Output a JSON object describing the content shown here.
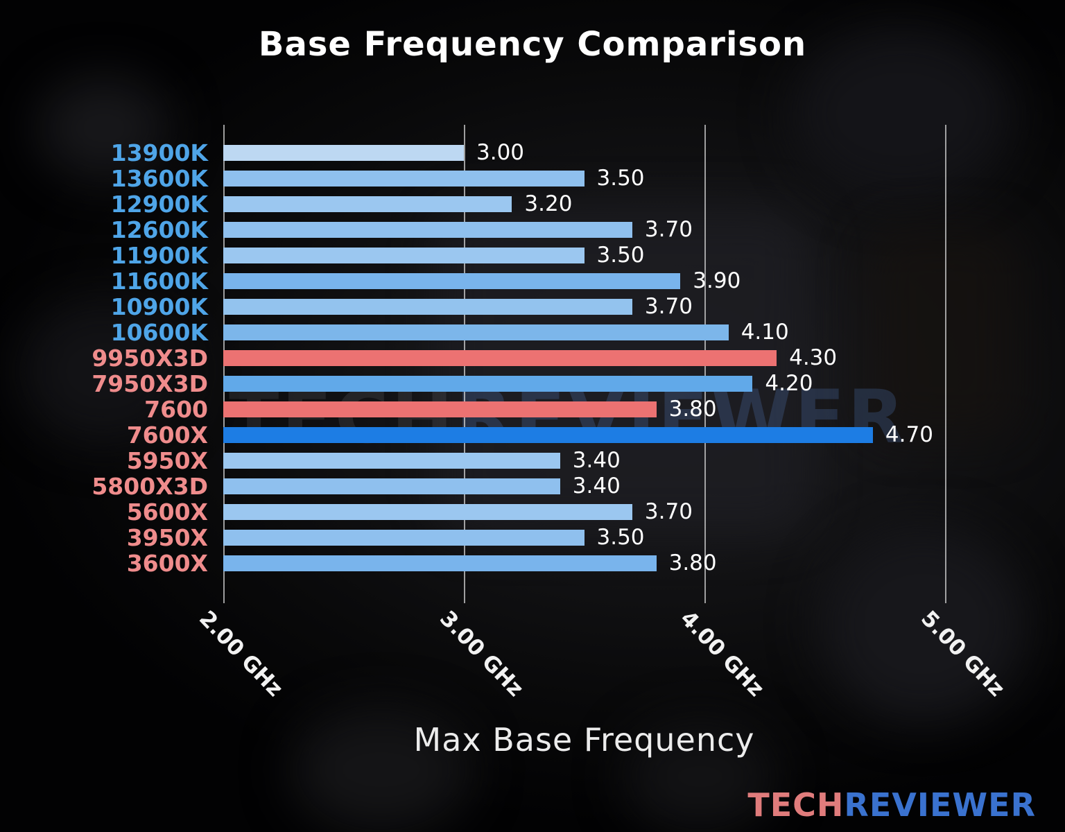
{
  "title": "Base Frequency Comparison",
  "watermark": {
    "tech": "TECH",
    "reviewer": "REVIEWER"
  },
  "logo": {
    "tech": "TECH",
    "reviewer": "REVIEWER"
  },
  "colors": {
    "title": "#ffffff",
    "value_label": "#ffffff",
    "grid": "#d8d8d8",
    "intel_label": "#4fa5e8",
    "amd_label": "#ef8c8c",
    "logo_tech": "#e07c7c",
    "logo_reviewer": "#3a72cf"
  },
  "chart_data": {
    "type": "bar",
    "orientation": "horizontal",
    "title": "Base Frequency Comparison",
    "xlabel": "Max Base Frequency",
    "xlim": [
      2.0,
      5.5
    ],
    "grid": true,
    "legend": false,
    "xticks": [
      {
        "value": 2.0,
        "label": "2.00 GHz"
      },
      {
        "value": 3.0,
        "label": "3.00 GHz"
      },
      {
        "value": 4.0,
        "label": "4.00 GHz"
      },
      {
        "value": 5.0,
        "label": "5.00 GHz"
      }
    ],
    "categories": [
      "13900K",
      "13600K",
      "12900K",
      "12600K",
      "11900K",
      "11600K",
      "10900K",
      "10600K",
      "9950X3D",
      "7950X3D",
      "7600",
      "7600X",
      "5950X",
      "5800X3D",
      "5600X",
      "3950X",
      "3600X"
    ],
    "values": [
      3.0,
      3.5,
      3.2,
      3.7,
      3.5,
      3.9,
      3.7,
      4.1,
      4.3,
      4.2,
      3.8,
      4.7,
      3.4,
      3.4,
      3.7,
      3.5,
      3.8
    ],
    "bars": [
      {
        "label": "13900K",
        "value": 3.0,
        "display": "3.00",
        "brand": "intel",
        "bar_color": "#bdd8f2",
        "label_color": "#4fa5e8"
      },
      {
        "label": "13600K",
        "value": 3.5,
        "display": "3.50",
        "brand": "intel",
        "bar_color": "#8fc0ee",
        "label_color": "#4fa5e8"
      },
      {
        "label": "12900K",
        "value": 3.2,
        "display": "3.20",
        "brand": "intel",
        "bar_color": "#9bc7f0",
        "label_color": "#4fa5e8"
      },
      {
        "label": "12600K",
        "value": 3.7,
        "display": "3.70",
        "brand": "intel",
        "bar_color": "#8fc0ee",
        "label_color": "#4fa5e8"
      },
      {
        "label": "11900K",
        "value": 3.5,
        "display": "3.50",
        "brand": "intel",
        "bar_color": "#9bc7f0",
        "label_color": "#4fa5e8"
      },
      {
        "label": "11600K",
        "value": 3.9,
        "display": "3.90",
        "brand": "intel",
        "bar_color": "#79b4ec",
        "label_color": "#4fa5e8"
      },
      {
        "label": "10900K",
        "value": 3.7,
        "display": "3.70",
        "brand": "intel",
        "bar_color": "#93c3ee",
        "label_color": "#4fa5e8"
      },
      {
        "label": "10600K",
        "value": 4.1,
        "display": "4.10",
        "brand": "intel",
        "bar_color": "#7cb6ea",
        "label_color": "#4fa5e8"
      },
      {
        "label": "9950X3D",
        "value": 4.3,
        "display": "4.30",
        "brand": "amd",
        "bar_color": "#ec7272",
        "label_color": "#ef8c8c"
      },
      {
        "label": "7950X3D",
        "value": 4.2,
        "display": "4.20",
        "brand": "amd",
        "bar_color": "#61a9e9",
        "label_color": "#ef8c8c"
      },
      {
        "label": "7600",
        "value": 3.8,
        "display": "3.80",
        "brand": "amd",
        "bar_color": "#ec7272",
        "label_color": "#ef8c8c"
      },
      {
        "label": "7600X",
        "value": 4.7,
        "display": "4.70",
        "brand": "amd",
        "bar_color": "#1d7de4",
        "label_color": "#ef8c8c"
      },
      {
        "label": "5950X",
        "value": 3.4,
        "display": "3.40",
        "brand": "amd",
        "bar_color": "#9bc7f0",
        "label_color": "#ef8c8c"
      },
      {
        "label": "5800X3D",
        "value": 3.4,
        "display": "3.40",
        "brand": "amd",
        "bar_color": "#8fc0ee",
        "label_color": "#ef8c8c"
      },
      {
        "label": "5600X",
        "value": 3.7,
        "display": "3.70",
        "brand": "amd",
        "bar_color": "#9bc7f0",
        "label_color": "#ef8c8c"
      },
      {
        "label": "3950X",
        "value": 3.5,
        "display": "3.50",
        "brand": "amd",
        "bar_color": "#8fc0ee",
        "label_color": "#ef8c8c"
      },
      {
        "label": "3600X",
        "value": 3.8,
        "display": "3.80",
        "brand": "amd",
        "bar_color": "#79b4ec",
        "label_color": "#ef8c8c"
      }
    ]
  }
}
